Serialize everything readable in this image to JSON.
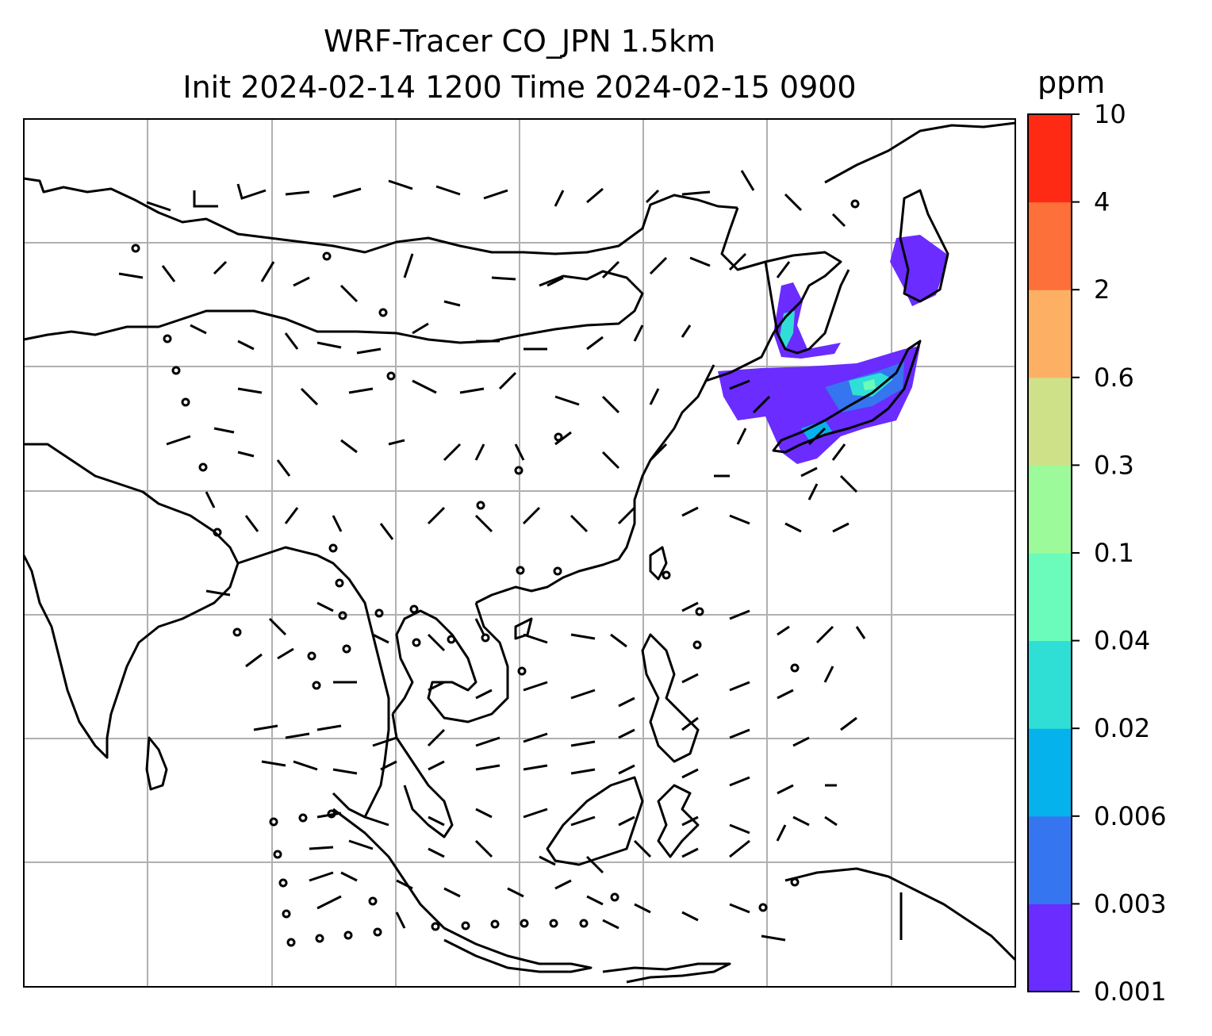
{
  "title": {
    "line1": "WRF-Tracer CO_JPN 1.5km",
    "line2": "Init 2024-02-14 1200 Time 2024-02-15 0900"
  },
  "colorbar": {
    "unit": "ppm",
    "levels": [
      "0.001",
      "0.003",
      "0.006",
      "0.02",
      "0.04",
      "0.1",
      "0.3",
      "0.6",
      "2",
      "4",
      "10"
    ],
    "colors": [
      "#6a2cff",
      "#3575f0",
      "#06b2ec",
      "#2fdfd6",
      "#6bfcbc",
      "#9dfa9a",
      "#cfe188",
      "#fdb064",
      "#fe7039",
      "#fe2a14"
    ]
  },
  "map": {
    "grid": "on",
    "features": [
      "coastlines",
      "wind-barbs",
      "co-tracer-plume"
    ],
    "plume_region": "Japan"
  }
}
